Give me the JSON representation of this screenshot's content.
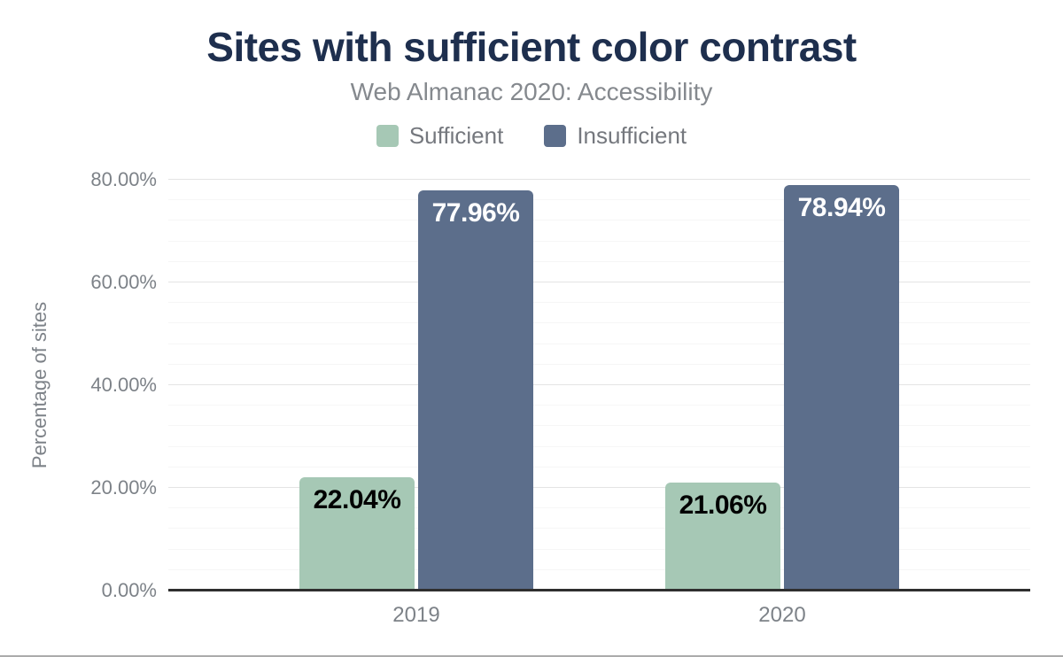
{
  "chart_data": {
    "type": "bar",
    "title": "Sites with sufficient color contrast",
    "subtitle": "Web Almanac 2020: Accessibility",
    "ylabel": "Percentage of sites",
    "categories": [
      "2019",
      "2020"
    ],
    "series": [
      {
        "name": "Sufficient",
        "color": "#a6c8b5",
        "label_color": "#000000",
        "values": [
          22.04,
          21.06
        ],
        "labels": [
          "22.04%",
          "21.06%"
        ]
      },
      {
        "name": "Insufficient",
        "color": "#5c6e8b",
        "label_color": "#ffffff",
        "values": [
          77.96,
          78.94
        ],
        "labels": [
          "77.96%",
          "78.94%"
        ]
      }
    ],
    "ylim": [
      0,
      80
    ],
    "yticks": [
      0,
      20,
      40,
      60,
      80
    ],
    "ytick_labels": [
      "0.00%",
      "20.00%",
      "40.00%",
      "60.00%",
      "80.00%"
    ],
    "grid": {
      "major_step": 20,
      "minor_step": 4,
      "on": true
    },
    "legend_position": "top"
  },
  "colors": {
    "title": "#1e2f4e",
    "subtitle": "#85898e",
    "axis_text": "#7d8288",
    "baseline": "#2f2f2f",
    "grid_major": "#e4e4e4",
    "grid_minor": "#f6f6f6",
    "bottom_divider": "#ababab"
  }
}
